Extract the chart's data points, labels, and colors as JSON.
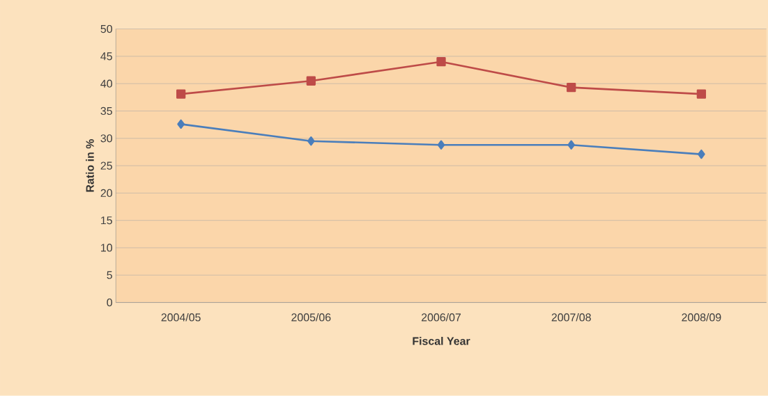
{
  "chart_data": {
    "type": "line",
    "xlabel": "Fiscal Year",
    "ylabel": "Ratio in %",
    "categories": [
      "2004/05",
      "2005/06",
      "2006/07",
      "2007/08",
      "2008/09"
    ],
    "series": [
      {
        "color": "#4a7ebb",
        "marker": "diamond",
        "values": [
          32.6,
          29.5,
          28.8,
          28.8,
          27.1
        ]
      },
      {
        "color": "#be4b48",
        "marker": "square",
        "values": [
          38.1,
          40.5,
          44.0,
          39.3,
          38.1
        ]
      }
    ],
    "ylim": [
      0,
      50
    ],
    "yticks": [
      0,
      5,
      10,
      15,
      20,
      25,
      30,
      35,
      40,
      45,
      50
    ],
    "grid": "y"
  }
}
